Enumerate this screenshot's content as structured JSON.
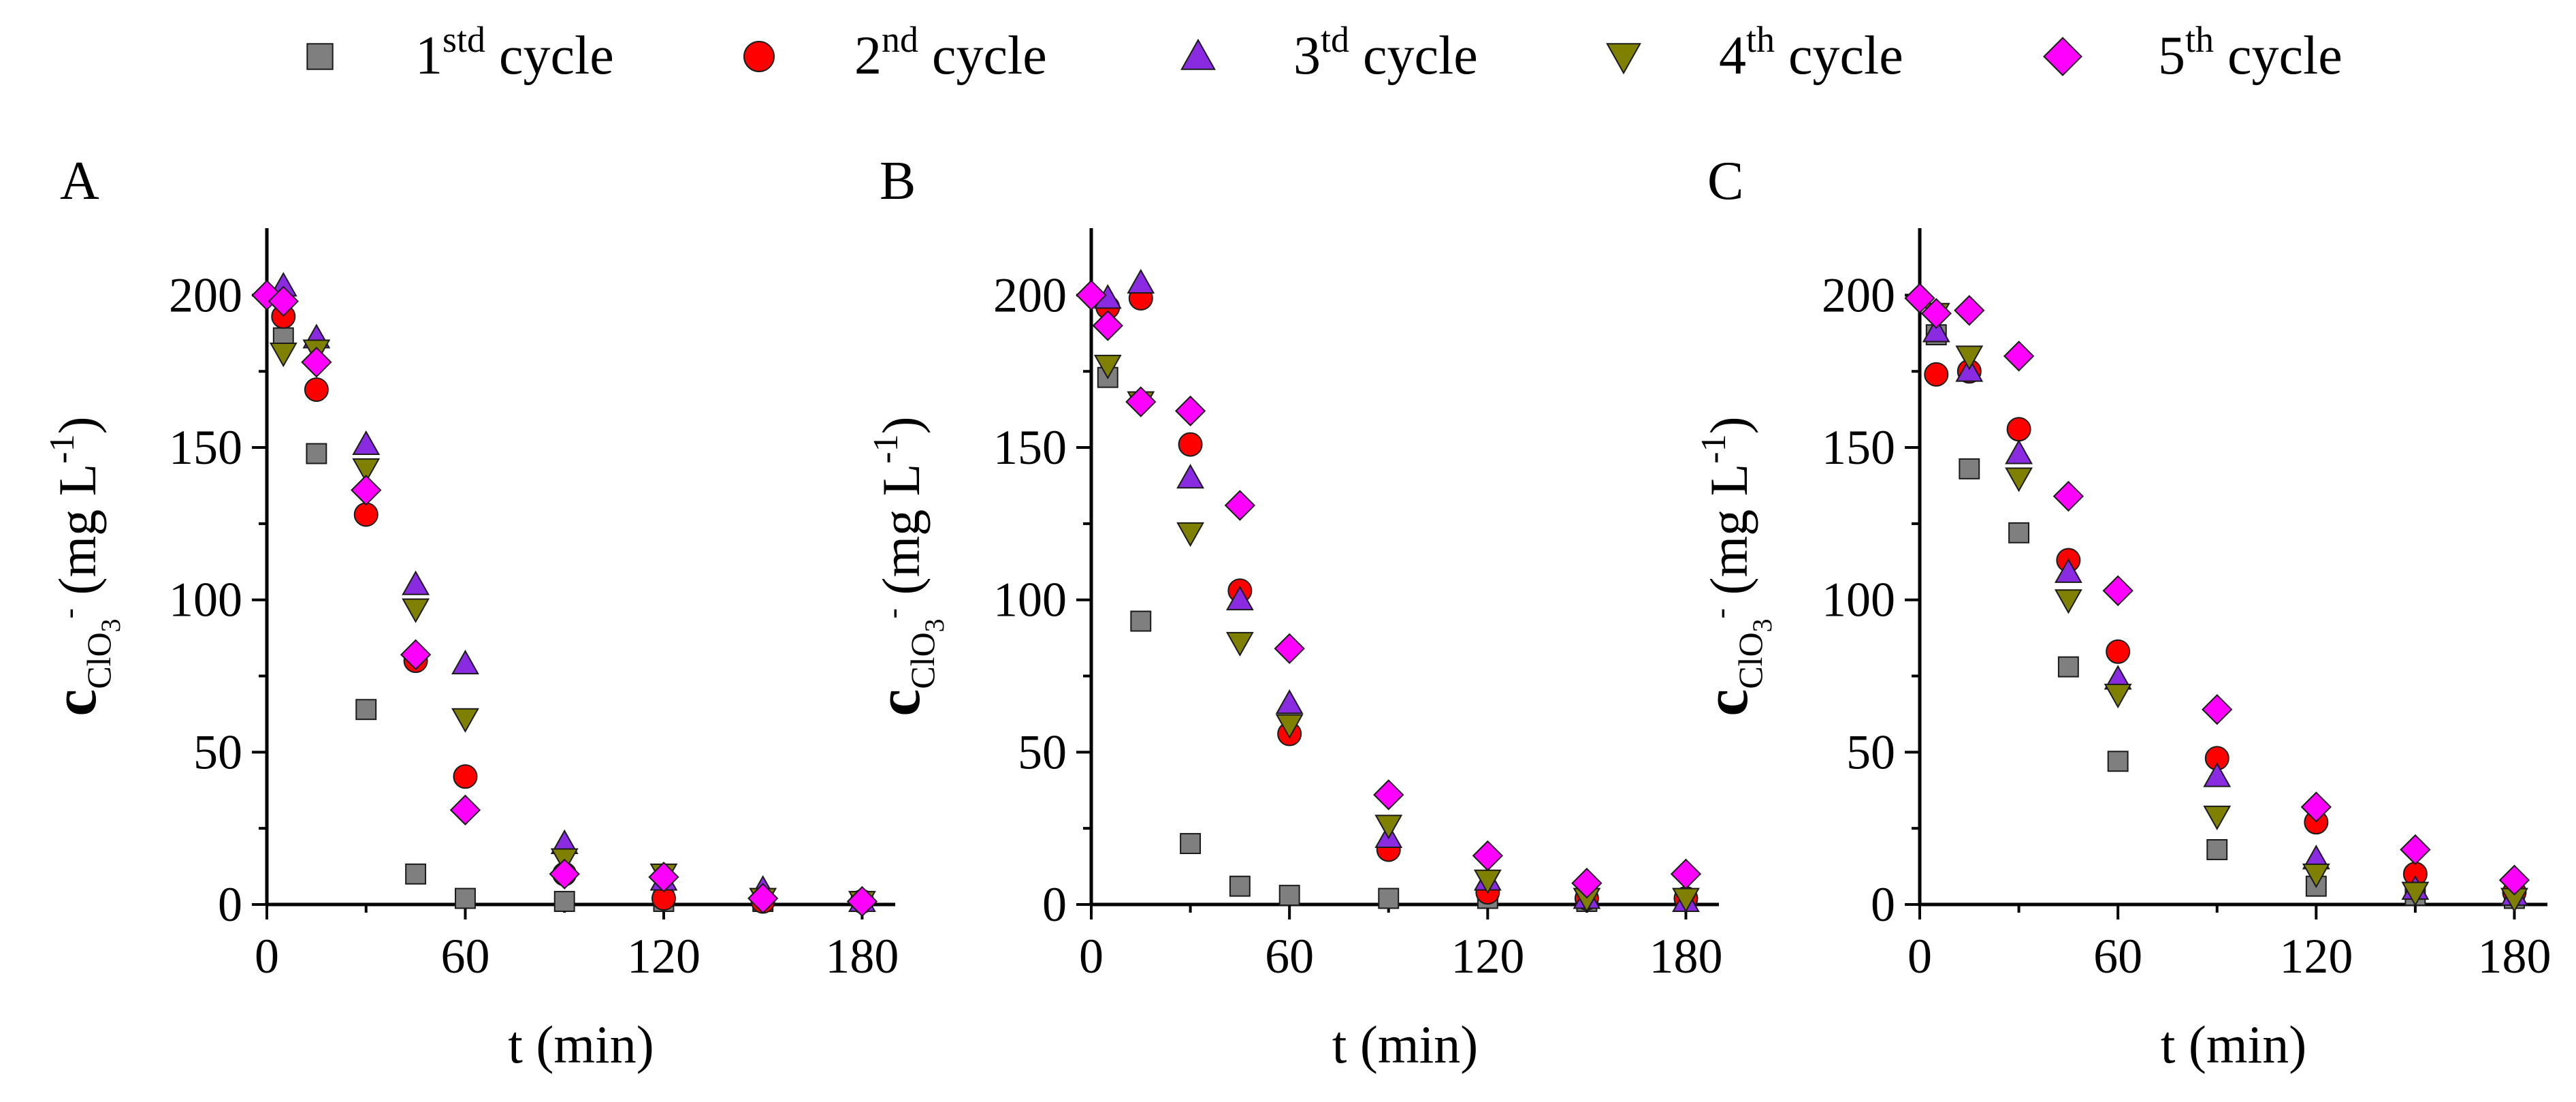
{
  "legend": {
    "items": [
      {
        "series": "1st",
        "base": "1",
        "sup": "std",
        "rest": " cycle",
        "marker": "square",
        "color": "#7f7f7f"
      },
      {
        "series": "2nd",
        "base": "2",
        "sup": "nd",
        "rest": " cycle",
        "marker": "circle",
        "color": "#ff0000"
      },
      {
        "series": "3rd",
        "base": "3",
        "sup": "td",
        "rest": " cycle",
        "marker": "triangle-up",
        "color": "#8a2be2"
      },
      {
        "series": "4th",
        "base": "4",
        "sup": "th",
        "rest": " cycle",
        "marker": "triangle-down",
        "color": "#808000"
      },
      {
        "series": "5th",
        "base": "5",
        "sup": "th",
        "rest": " cycle",
        "marker": "diamond",
        "color": "#ff00ff"
      }
    ]
  },
  "chart_data": [
    {
      "panel": "A",
      "type": "scatter",
      "xlabel": "t (min)",
      "ylabel": {
        "base": "c",
        "sub": "ClO",
        "sub2": "3",
        "sup": "-",
        "unit": " (mg L",
        "unit_sup": "-1",
        "close": ")"
      },
      "xlim": [
        0,
        190
      ],
      "ylim": [
        0,
        222
      ],
      "xticks": [
        0,
        60,
        120,
        180
      ],
      "yticks": [
        0,
        50,
        100,
        150,
        200
      ],
      "grid": false,
      "series": [
        {
          "name": "1st",
          "points": [
            [
              5,
              186
            ],
            [
              15,
              148
            ],
            [
              30,
              64
            ],
            [
              45,
              10
            ],
            [
              60,
              2
            ],
            [
              90,
              1
            ],
            [
              120,
              1
            ],
            [
              150,
              1
            ],
            [
              180,
              1
            ]
          ]
        },
        {
          "name": "2nd",
          "points": [
            [
              5,
              193
            ],
            [
              15,
              169
            ],
            [
              30,
              128
            ],
            [
              45,
              80
            ],
            [
              60,
              42
            ],
            [
              90,
              10
            ],
            [
              120,
              2
            ],
            [
              150,
              1
            ],
            [
              180,
              1
            ]
          ]
        },
        {
          "name": "3rd",
          "points": [
            [
              5,
              203
            ],
            [
              15,
              186
            ],
            [
              30,
              151
            ],
            [
              45,
              105
            ],
            [
              60,
              79
            ],
            [
              90,
              20
            ],
            [
              120,
              8
            ],
            [
              150,
              5
            ],
            [
              180,
              1
            ]
          ]
        },
        {
          "name": "4th",
          "points": [
            [
              5,
              181
            ],
            [
              15,
              182
            ],
            [
              30,
              143
            ],
            [
              45,
              97
            ],
            [
              60,
              61
            ],
            [
              90,
              15
            ],
            [
              120,
              10
            ],
            [
              150,
              2
            ],
            [
              180,
              1
            ]
          ]
        },
        {
          "name": "5th",
          "points": [
            [
              0,
              200
            ],
            [
              5,
              198
            ],
            [
              15,
              178
            ],
            [
              30,
              136
            ],
            [
              45,
              82
            ],
            [
              60,
              31
            ],
            [
              90,
              10
            ],
            [
              120,
              9
            ],
            [
              150,
              2
            ],
            [
              180,
              1
            ]
          ]
        }
      ]
    },
    {
      "panel": "B",
      "type": "scatter",
      "xlabel": "t (min)",
      "ylabel": {
        "base": "c",
        "sub": "ClO",
        "sub2": "3",
        "sup": "-",
        "unit": " (mg L",
        "unit_sup": "-1",
        "close": ")"
      },
      "xlim": [
        0,
        190
      ],
      "ylim": [
        0,
        222
      ],
      "xticks": [
        0,
        60,
        120,
        180
      ],
      "yticks": [
        0,
        50,
        100,
        150,
        200
      ],
      "grid": false,
      "series": [
        {
          "name": "1st",
          "points": [
            [
              5,
              173
            ],
            [
              15,
              93
            ],
            [
              30,
              20
            ],
            [
              45,
              6
            ],
            [
              60,
              3
            ],
            [
              90,
              2
            ],
            [
              120,
              2
            ],
            [
              150,
              1
            ],
            [
              180,
              1
            ]
          ]
        },
        {
          "name": "2nd",
          "points": [
            [
              5,
              196
            ],
            [
              15,
              199
            ],
            [
              30,
              151
            ],
            [
              45,
              103
            ],
            [
              60,
              56
            ],
            [
              90,
              18
            ],
            [
              120,
              4
            ],
            [
              150,
              2
            ],
            [
              180,
              2
            ]
          ]
        },
        {
          "name": "3rd",
          "points": [
            [
              5,
              199
            ],
            [
              15,
              204
            ],
            [
              30,
              140
            ],
            [
              45,
              100
            ],
            [
              60,
              66
            ],
            [
              90,
              22
            ],
            [
              120,
              8
            ],
            [
              150,
              2
            ],
            [
              180,
              1
            ]
          ]
        },
        {
          "name": "4th",
          "points": [
            [
              5,
              177
            ],
            [
              15,
              165
            ],
            [
              30,
              122
            ],
            [
              45,
              86
            ],
            [
              60,
              59
            ],
            [
              90,
              26
            ],
            [
              120,
              8
            ],
            [
              150,
              2
            ],
            [
              180,
              2
            ]
          ]
        },
        {
          "name": "5th",
          "points": [
            [
              0,
              200
            ],
            [
              5,
              190
            ],
            [
              15,
              165
            ],
            [
              30,
              162
            ],
            [
              45,
              131
            ],
            [
              60,
              84
            ],
            [
              90,
              36
            ],
            [
              120,
              16
            ],
            [
              150,
              7
            ],
            [
              180,
              10
            ]
          ]
        }
      ]
    },
    {
      "panel": "C",
      "type": "scatter",
      "xlabel": "t (min)",
      "ylabel": {
        "base": "c",
        "sub": "ClO",
        "sub2": "3",
        "sup": "-",
        "unit": " (mg L",
        "unit_sup": "-1",
        "close": ")"
      },
      "xlim": [
        0,
        190
      ],
      "ylim": [
        0,
        222
      ],
      "xticks": [
        0,
        60,
        120,
        180
      ],
      "yticks": [
        0,
        50,
        100,
        150,
        200
      ],
      "grid": false,
      "series": [
        {
          "name": "1st",
          "points": [
            [
              5,
              187
            ],
            [
              15,
              143
            ],
            [
              30,
              122
            ],
            [
              45,
              78
            ],
            [
              60,
              47
            ],
            [
              90,
              18
            ],
            [
              120,
              6
            ],
            [
              150,
              3
            ],
            [
              180,
              2
            ]
          ]
        },
        {
          "name": "2nd",
          "points": [
            [
              5,
              174
            ],
            [
              15,
              175
            ],
            [
              30,
              156
            ],
            [
              45,
              113
            ],
            [
              60,
              83
            ],
            [
              90,
              48
            ],
            [
              120,
              27
            ],
            [
              150,
              10
            ],
            [
              180,
              4
            ]
          ]
        },
        {
          "name": "3rd",
          "points": [
            [
              5,
              188
            ],
            [
              15,
              175
            ],
            [
              30,
              148
            ],
            [
              45,
              109
            ],
            [
              60,
              74
            ],
            [
              90,
              42
            ],
            [
              120,
              15
            ],
            [
              150,
              5
            ],
            [
              180,
              3
            ]
          ]
        },
        {
          "name": "4th",
          "points": [
            [
              5,
              194
            ],
            [
              15,
              180
            ],
            [
              30,
              140
            ],
            [
              45,
              100
            ],
            [
              60,
              69
            ],
            [
              90,
              29
            ],
            [
              120,
              10
            ],
            [
              150,
              4
            ],
            [
              180,
              2
            ]
          ]
        },
        {
          "name": "5th",
          "points": [
            [
              0,
              199
            ],
            [
              5,
              194
            ],
            [
              15,
              195
            ],
            [
              30,
              180
            ],
            [
              45,
              134
            ],
            [
              60,
              103
            ],
            [
              90,
              64
            ],
            [
              120,
              32
            ],
            [
              150,
              18
            ],
            [
              180,
              8
            ]
          ]
        }
      ]
    }
  ]
}
